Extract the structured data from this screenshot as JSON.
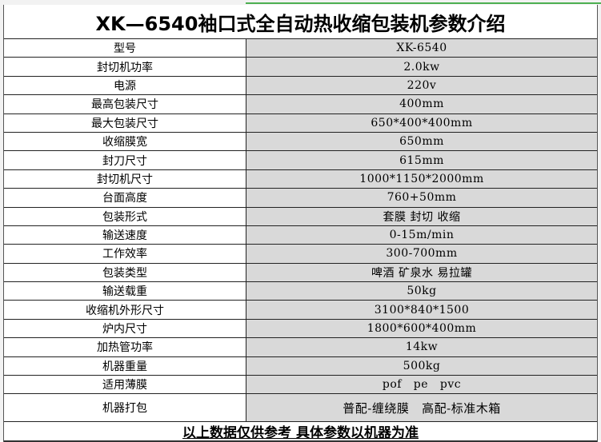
{
  "title": "XK—6540袖口式全自动热收缩包装机参数介绍",
  "rows": [
    {
      "label": "型号",
      "value": "XK-6540"
    },
    {
      "label": "封切机功率",
      "value": "2.0kw"
    },
    {
      "label": "电源",
      "value": "220v"
    },
    {
      "label": "最高包装尺寸",
      "value": "400mm"
    },
    {
      "label": "最大包装尺寸",
      "value": "650*400*400mm"
    },
    {
      "label": "收缩膜宽",
      "value": "650mm"
    },
    {
      "label": "封刀尺寸",
      "value": "615mm"
    },
    {
      "label": "封切机尺寸",
      "value": "1000*1150*2000mm"
    },
    {
      "label": "台面高度",
      "value": "760+50mm"
    },
    {
      "label": "包装形式",
      "value": "套膜 封切 收缩"
    },
    {
      "label": "输送速度",
      "value": "0-15m/min"
    },
    {
      "label": "工作效率",
      "value": "300-700mm"
    },
    {
      "label": "包装类型",
      "value": "啤酒 矿泉水 易拉罐"
    },
    {
      "label": "输送载重",
      "value": "50kg"
    },
    {
      "label": "收缩机外形尺寸",
      "value": "3100*840*1500"
    },
    {
      "label": "炉内尺寸",
      "value": "1800*600*400mm"
    },
    {
      "label": "加热管功率",
      "value": "14kw"
    },
    {
      "label": "机器重量",
      "value": "500kg"
    },
    {
      "label": "适用薄膜",
      "value": "pof   pe   pvc"
    },
    {
      "label": "机器打包",
      "value": "普配-缠绕膜   高配-标准木箱"
    }
  ],
  "footer": "以上数据仅供参考 具体参数以机器为准"
}
